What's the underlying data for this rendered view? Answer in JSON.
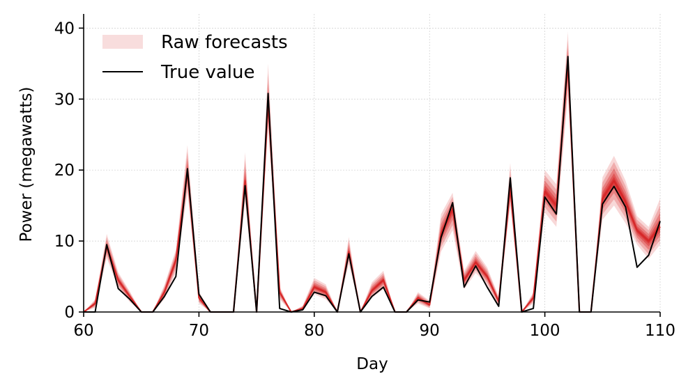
{
  "chart_data": {
    "type": "line",
    "xlabel": "Day",
    "ylabel": "Power (megawatts)",
    "xlim": [
      60,
      110
    ],
    "ylim": [
      0,
      42
    ],
    "xticks": [
      60,
      70,
      80,
      90,
      100,
      110
    ],
    "yticks": [
      0,
      10,
      20,
      30,
      40
    ],
    "grid": true,
    "legend_position": "top-left",
    "colors": {
      "forecast": "#d62728",
      "forecast_band": "#f4c7c7",
      "truth": "#000000"
    },
    "series": [
      {
        "name": "True value",
        "x": [
          60,
          61,
          62,
          63,
          64,
          65,
          66,
          67,
          68,
          69,
          70,
          71,
          72,
          73,
          74,
          75,
          76,
          77,
          78,
          79,
          80,
          81,
          82,
          83,
          84,
          85,
          86,
          87,
          88,
          89,
          90,
          91,
          92,
          93,
          94,
          95,
          96,
          97,
          98,
          99,
          100,
          101,
          102,
          103,
          104,
          105,
          106,
          107,
          108,
          109,
          110
        ],
        "values": [
          0,
          0,
          9.5,
          3.3,
          1.8,
          0,
          0,
          2.2,
          5.0,
          20.2,
          2.5,
          0,
          0,
          0,
          17.8,
          0,
          30.8,
          0.5,
          0,
          0.3,
          2.8,
          2.3,
          0,
          8.2,
          0,
          2.2,
          3.5,
          0,
          0,
          1.7,
          1.4,
          10.5,
          15.4,
          3.5,
          6.5,
          3.5,
          0.8,
          18.9,
          0,
          0.5,
          16.2,
          13.8,
          36.0,
          0,
          0,
          15.2,
          17.7,
          14.8,
          6.3,
          8.0,
          12.8
        ]
      },
      {
        "name": "Raw forecasts",
        "x": [
          60,
          61,
          62,
          63,
          64,
          65,
          66,
          67,
          68,
          69,
          70,
          71,
          72,
          73,
          74,
          75,
          76,
          77,
          78,
          79,
          80,
          81,
          82,
          83,
          84,
          85,
          86,
          87,
          88,
          89,
          90,
          91,
          92,
          93,
          94,
          95,
          96,
          97,
          98,
          99,
          100,
          101,
          102,
          103,
          104,
          105,
          106,
          107,
          108,
          109,
          110
        ],
        "values": [
          0,
          1.2,
          9.2,
          4.5,
          2.2,
          0,
          0,
          2.8,
          7.3,
          19.8,
          2.0,
          0,
          0,
          0,
          18.5,
          0,
          29.5,
          2.8,
          0,
          0.5,
          3.5,
          2.8,
          0,
          8.5,
          0,
          3.0,
          4.5,
          0,
          0,
          2.0,
          1.0,
          11.0,
          14.5,
          4.5,
          7.0,
          5.0,
          1.5,
          17.5,
          0,
          2.0,
          17.0,
          15.0,
          35.0,
          0,
          0,
          16.0,
          18.5,
          15.5,
          11.5,
          10.0,
          12.0
        ],
        "low": [
          0,
          0.6,
          7.6,
          3.4,
          1.4,
          0,
          0,
          1.8,
          5.6,
          16.8,
          1.2,
          0,
          0,
          0,
          15.5,
          0,
          26.0,
          1.8,
          0,
          0.2,
          2.5,
          1.8,
          0,
          6.8,
          0,
          2.0,
          3.2,
          0,
          0,
          1.2,
          0.5,
          8.5,
          11.5,
          3.2,
          5.5,
          3.8,
          0.8,
          15.0,
          0,
          1.2,
          14.0,
          12.0,
          30.5,
          0,
          0,
          13.0,
          15.0,
          12.5,
          9.5,
          7.5,
          9.5
        ],
        "high": [
          0,
          1.8,
          11.0,
          5.6,
          2.9,
          0,
          0,
          3.8,
          8.8,
          23.5,
          2.9,
          0,
          0,
          0,
          22.5,
          0,
          35.0,
          3.6,
          0,
          0.9,
          4.8,
          3.9,
          0,
          10.6,
          0,
          4.2,
          5.8,
          0,
          0,
          2.8,
          1.6,
          13.8,
          16.8,
          5.8,
          8.6,
          6.3,
          2.2,
          21.0,
          0,
          2.8,
          20.0,
          18.0,
          39.5,
          0,
          0,
          19.0,
          22.0,
          18.5,
          13.5,
          12.0,
          16.0
        ]
      }
    ]
  }
}
